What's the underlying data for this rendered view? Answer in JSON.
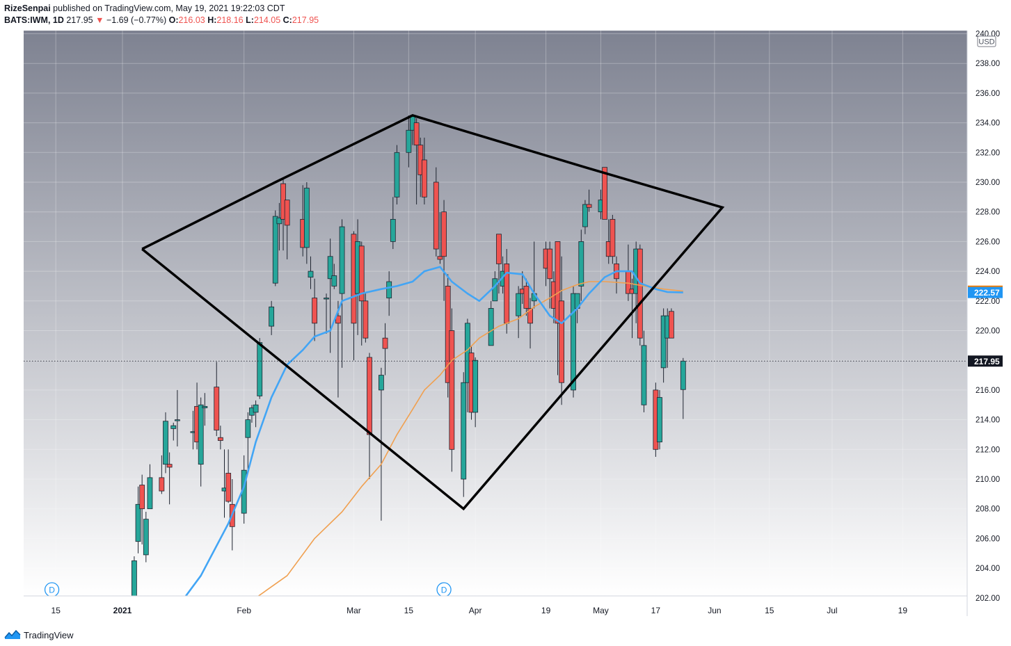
{
  "header": {
    "author": "RizeSenpai",
    "published": " published on TradingView.com, May 19, 2021 19:22:03 CDT",
    "symbol": "BATS:IWM, 1D",
    "price": "217.95",
    "change_arrow": "▼",
    "change": "−1.69 (−0.77%)",
    "o_label": "O:",
    "o_value": "216.03",
    "h_label": "H:",
    "h_value": "218.16",
    "l_label": "L:",
    "l_value": "214.05",
    "c_label": "C:",
    "c_value": "217.95"
  },
  "footer": {
    "brand": "TradingView",
    "icon": "tradingview-logo-icon"
  },
  "colors": {
    "up": "#26a69a",
    "down": "#ef5350",
    "ma_fast": "#42a5f5",
    "ma_slow": "#f0a050",
    "trendline": "#000000",
    "bg_top": "#7e8291",
    "bg_bottom": "#ffffff"
  },
  "chart_data": {
    "type": "candlestick",
    "y_axis": {
      "currency": "USD",
      "ticks": [
        "202.00",
        "204.00",
        "206.00",
        "208.00",
        "210.00",
        "212.00",
        "214.00",
        "216.00",
        "218.00",
        "220.00",
        "222.00",
        "224.00",
        "226.00",
        "228.00",
        "230.00",
        "232.00",
        "234.00",
        "236.00",
        "238.00",
        "240.00"
      ],
      "range": [
        201.3,
        240.4
      ]
    },
    "x_axis": {
      "labels": [
        {
          "text": "15",
          "date": "2020-12-15"
        },
        {
          "text": "2021",
          "date": "2021-01-01",
          "bold": true
        },
        {
          "text": "Feb",
          "date": "2021-02-01"
        },
        {
          "text": "Mar",
          "date": "2021-03-01"
        },
        {
          "text": "15",
          "date": "2021-03-15"
        },
        {
          "text": "Apr",
          "date": "2021-04-01"
        },
        {
          "text": "19",
          "date": "2021-04-19"
        },
        {
          "text": "May",
          "date": "2021-05-03"
        },
        {
          "text": "17",
          "date": "2021-05-17"
        },
        {
          "text": "Jun",
          "date": "2021-06-01"
        },
        {
          "text": "15",
          "date": "2021-06-15"
        },
        {
          "text": "Jul",
          "date": "2021-07-01"
        },
        {
          "text": "19",
          "date": "2021-07-19"
        }
      ]
    },
    "candles": [
      {
        "d": "2021-01-04",
        "o": 201.0,
        "h": 204.8,
        "l": 200.6,
        "c": 204.5
      },
      {
        "d": "2021-01-05",
        "o": 205.8,
        "h": 209.5,
        "l": 205.0,
        "c": 208.3
      },
      {
        "d": "2021-01-06",
        "o": 209.6,
        "h": 210.3,
        "l": 205.6,
        "c": 208.0
      },
      {
        "d": "2021-01-07",
        "o": 204.9,
        "h": 207.8,
        "l": 204.4,
        "c": 207.3
      },
      {
        "d": "2021-01-08",
        "o": 208.0,
        "h": 211.0,
        "l": 208.0,
        "c": 210.1
      },
      {
        "d": "2021-01-11",
        "o": 210.1,
        "h": 211.6,
        "l": 209.0,
        "c": 209.2
      },
      {
        "d": "2021-01-12",
        "o": 211.0,
        "h": 214.5,
        "l": 210.4,
        "c": 213.9
      },
      {
        "d": "2021-01-13",
        "o": 211.0,
        "h": 211.8,
        "l": 208.3,
        "c": 210.8
      },
      {
        "d": "2021-01-14",
        "o": 213.4,
        "h": 213.8,
        "l": 212.6,
        "c": 213.6
      },
      {
        "d": "2021-01-15",
        "o": 214.0,
        "h": 216.0,
        "l": 212.2,
        "c": 214.0
      },
      {
        "d": "2021-01-19",
        "o": 213.2,
        "h": 214.6,
        "l": 212.0,
        "c": 213.2
      },
      {
        "d": "2021-01-20",
        "o": 214.9,
        "h": 216.5,
        "l": 212.0,
        "c": 212.5
      },
      {
        "d": "2021-01-21",
        "o": 211.0,
        "h": 215.5,
        "l": 209.5,
        "c": 215.0
      },
      {
        "d": "2021-01-22",
        "o": 214.8,
        "h": 215.8,
        "l": 213.6,
        "c": 214.9
      },
      {
        "d": "2021-01-25",
        "o": 216.2,
        "h": 217.9,
        "l": 212.9,
        "c": 213.3
      },
      {
        "d": "2021-01-26",
        "o": 212.8,
        "h": 213.6,
        "l": 212.0,
        "c": 212.6
      },
      {
        "d": "2021-01-27",
        "o": 209.2,
        "h": 212.0,
        "l": 207.4,
        "c": 209.4
      },
      {
        "d": "2021-01-28",
        "o": 210.4,
        "h": 212.0,
        "l": 208.4,
        "c": 208.5
      },
      {
        "d": "2021-01-29",
        "o": 208.3,
        "h": 210.0,
        "l": 205.2,
        "c": 206.8
      },
      {
        "d": "2021-02-01",
        "o": 207.7,
        "h": 211.6,
        "l": 207.0,
        "c": 210.6
      },
      {
        "d": "2021-02-02",
        "o": 212.8,
        "h": 214.5,
        "l": 210.6,
        "c": 214.0
      },
      {
        "d": "2021-02-03",
        "o": 214.3,
        "h": 215.0,
        "l": 213.8,
        "c": 214.8
      },
      {
        "d": "2021-02-04",
        "o": 214.5,
        "h": 215.3,
        "l": 213.5,
        "c": 215.0
      },
      {
        "d": "2021-02-05",
        "o": 215.6,
        "h": 219.5,
        "l": 215.4,
        "c": 219.2
      },
      {
        "d": "2021-02-08",
        "o": 220.3,
        "h": 222.0,
        "l": 219.7,
        "c": 221.6
      },
      {
        "d": "2021-02-09",
        "o": 223.2,
        "h": 228.1,
        "l": 223.0,
        "c": 227.7
      },
      {
        "d": "2021-02-10",
        "o": 227.2,
        "h": 228.6,
        "l": 225.4,
        "c": 227.6
      },
      {
        "d": "2021-02-11",
        "o": 229.9,
        "h": 230.3,
        "l": 225.4,
        "c": 227.5
      },
      {
        "d": "2021-02-12",
        "o": 228.8,
        "h": 228.8,
        "l": 224.8,
        "c": 227.1
      },
      {
        "d": "2021-02-16",
        "o": 227.5,
        "h": 229.8,
        "l": 225.0,
        "c": 225.6
      },
      {
        "d": "2021-02-17",
        "o": 225.6,
        "h": 230.0,
        "l": 224.5,
        "c": 229.6
      },
      {
        "d": "2021-02-18",
        "o": 223.6,
        "h": 225.0,
        "l": 222.8,
        "c": 224.0
      },
      {
        "d": "2021-02-19",
        "o": 222.2,
        "h": 223.5,
        "l": 219.3,
        "c": 220.5
      },
      {
        "d": "2021-02-22",
        "o": 222.2,
        "h": 222.5,
        "l": 219.8,
        "c": 222.2
      },
      {
        "d": "2021-02-23",
        "o": 223.5,
        "h": 226.2,
        "l": 218.5,
        "c": 225.0
      },
      {
        "d": "2021-02-24",
        "o": 223.0,
        "h": 224.5,
        "l": 222.8,
        "c": 223.7
      },
      {
        "d": "2021-02-25",
        "o": 221.0,
        "h": 222.0,
        "l": 215.5,
        "c": 220.5
      },
      {
        "d": "2021-02-26",
        "o": 222.5,
        "h": 227.5,
        "l": 217.5,
        "c": 227.0
      },
      {
        "d": "2021-03-01",
        "o": 226.5,
        "h": 226.7,
        "l": 218.0,
        "c": 220.5
      },
      {
        "d": "2021-03-02",
        "o": 222.5,
        "h": 227.5,
        "l": 219.7,
        "c": 226.0
      },
      {
        "d": "2021-03-03",
        "o": 225.7,
        "h": 226.0,
        "l": 219.0,
        "c": 222.0
      },
      {
        "d": "2021-03-04",
        "o": 222.0,
        "h": 222.5,
        "l": 219.2,
        "c": 219.5
      },
      {
        "d": "2021-03-05",
        "o": 218.2,
        "h": 218.5,
        "l": 210.0,
        "c": 213.0
      },
      {
        "d": "2021-03-08",
        "o": 216.0,
        "h": 217.5,
        "l": 207.2,
        "c": 217.0
      },
      {
        "d": "2021-03-09",
        "o": 219.5,
        "h": 220.5,
        "l": 217.0,
        "c": 218.8
      },
      {
        "d": "2021-03-10",
        "o": 222.2,
        "h": 224.0,
        "l": 221.0,
        "c": 223.3
      },
      {
        "d": "2021-03-11",
        "o": 226.0,
        "h": 229.0,
        "l": 225.5,
        "c": 227.5
      },
      {
        "d": "2021-03-12",
        "o": 229.0,
        "h": 232.5,
        "l": 228.5,
        "c": 232.0
      },
      {
        "d": "2021-03-15",
        "o": 232.0,
        "h": 234.5,
        "l": 231.0,
        "c": 233.5
      },
      {
        "d": "2021-03-16",
        "o": 233.5,
        "h": 234.5,
        "l": 232.5,
        "c": 234.5
      },
      {
        "d": "2021-03-17",
        "o": 234.0,
        "h": 234.3,
        "l": 228.5,
        "c": 232.5
      },
      {
        "d": "2021-03-18",
        "o": 232.5,
        "h": 233.0,
        "l": 229.0,
        "c": 230.5
      },
      {
        "d": "2021-03-19",
        "o": 231.5,
        "h": 233.0,
        "l": 228.5,
        "c": 229.0
      },
      {
        "d": "2021-03-22",
        "o": 230.0,
        "h": 231.0,
        "l": 225.0,
        "c": 225.5
      },
      {
        "d": "2021-03-23",
        "o": 225.0,
        "h": 228.0,
        "l": 224.5,
        "c": 224.8
      },
      {
        "d": "2021-03-24",
        "o": 228.0,
        "h": 228.8,
        "l": 222.0,
        "c": 225.0
      },
      {
        "d": "2021-03-25",
        "o": 223.0,
        "h": 223.8,
        "l": 215.5,
        "c": 216.5
      },
      {
        "d": "2021-03-26",
        "o": 220.0,
        "h": 221.5,
        "l": 210.5,
        "c": 212.0
      },
      {
        "d": "2021-03-29",
        "o": 210.0,
        "h": 217.2,
        "l": 208.8,
        "c": 216.5
      },
      {
        "d": "2021-03-30",
        "o": 216.5,
        "h": 220.8,
        "l": 214.5,
        "c": 220.5
      },
      {
        "d": "2021-03-31",
        "o": 218.5,
        "h": 219.0,
        "l": 214.0,
        "c": 214.5
      },
      {
        "d": "2021-04-01",
        "o": 214.5,
        "h": 218.2,
        "l": 213.5,
        "c": 218.0
      },
      {
        "d": "2021-04-05",
        "o": 219.0,
        "h": 222.0,
        "l": 219.0,
        "c": 221.5
      },
      {
        "d": "2021-04-06",
        "o": 222.0,
        "h": 224.0,
        "l": 222.0,
        "c": 223.5
      },
      {
        "d": "2021-04-07",
        "o": 226.5,
        "h": 226.5,
        "l": 222.5,
        "c": 224.5
      },
      {
        "d": "2021-04-08",
        "o": 223.0,
        "h": 225.0,
        "l": 222.5,
        "c": 224.0
      },
      {
        "d": "2021-04-09",
        "o": 224.5,
        "h": 225.5,
        "l": 219.8,
        "c": 220.5
      },
      {
        "d": "2021-04-12",
        "o": 221.0,
        "h": 223.0,
        "l": 219.5,
        "c": 222.5
      },
      {
        "d": "2021-04-13",
        "o": 222.8,
        "h": 224.0,
        "l": 221.8,
        "c": 222.5
      },
      {
        "d": "2021-04-14",
        "o": 223.0,
        "h": 223.5,
        "l": 221.0,
        "c": 221.5
      },
      {
        "d": "2021-04-15",
        "o": 221.5,
        "h": 222.2,
        "l": 218.8,
        "c": 220.5
      },
      {
        "d": "2021-04-16",
        "o": 222.0,
        "h": 226.0,
        "l": 221.5,
        "c": 222.5
      },
      {
        "d": "2021-04-19",
        "o": 225.5,
        "h": 226.0,
        "l": 223.0,
        "c": 224.2
      },
      {
        "d": "2021-04-20",
        "o": 225.5,
        "h": 226.0,
        "l": 221.5,
        "c": 223.5
      },
      {
        "d": "2021-04-21",
        "o": 223.3,
        "h": 224.0,
        "l": 220.5,
        "c": 221.5
      },
      {
        "d": "2021-04-22",
        "o": 226.0,
        "h": 226.0,
        "l": 217.0,
        "c": 220.5
      },
      {
        "d": "2021-04-23",
        "o": 222.0,
        "h": 225.0,
        "l": 215.0,
        "c": 216.5
      },
      {
        "d": "2021-04-26",
        "o": 216.0,
        "h": 223.0,
        "l": 215.5,
        "c": 222.5
      },
      {
        "d": "2021-04-27",
        "o": 221.5,
        "h": 222.5,
        "l": 220.5,
        "c": 222.5
      },
      {
        "d": "2021-04-28",
        "o": 223.0,
        "h": 226.8,
        "l": 222.0,
        "c": 226.0
      },
      {
        "d": "2021-04-29",
        "o": 227.0,
        "h": 228.8,
        "l": 226.5,
        "c": 228.5
      },
      {
        "d": "2021-04-30",
        "o": 228.5,
        "h": 229.5,
        "l": 228.0,
        "c": 228.3
      },
      {
        "d": "2021-05-03",
        "o": 228.0,
        "h": 229.5,
        "l": 227.5,
        "c": 228.8
      },
      {
        "d": "2021-05-04",
        "o": 231.0,
        "h": 231.0,
        "l": 227.5,
        "c": 227.5
      },
      {
        "d": "2021-05-05",
        "o": 226.0,
        "h": 227.5,
        "l": 224.5,
        "c": 225.0
      },
      {
        "d": "2021-05-06",
        "o": 227.5,
        "h": 227.8,
        "l": 224.5,
        "c": 225.0
      },
      {
        "d": "2021-05-07",
        "o": 224.5,
        "h": 225.0,
        "l": 222.5,
        "c": 223.5
      },
      {
        "d": "2021-05-10",
        "o": 224.0,
        "h": 225.8,
        "l": 222.0,
        "c": 222.5
      },
      {
        "d": "2021-05-11",
        "o": 222.8,
        "h": 223.5,
        "l": 219.5,
        "c": 222.5
      },
      {
        "d": "2021-05-12",
        "o": 222.5,
        "h": 226.0,
        "l": 220.5,
        "c": 225.5
      },
      {
        "d": "2021-05-13",
        "o": 225.5,
        "h": 225.8,
        "l": 219.0,
        "c": 219.5
      },
      {
        "d": "2021-05-14",
        "o": 215.0,
        "h": 220.0,
        "l": 214.5,
        "c": 219.0
      },
      {
        "d": "2021-05-17",
        "o": 216.0,
        "h": 216.5,
        "l": 211.5,
        "c": 212.0
      },
      {
        "d": "2021-05-18",
        "o": 212.5,
        "h": 216.0,
        "l": 212.0,
        "c": 215.5
      },
      {
        "d": "2021-05-19",
        "o": 217.5,
        "h": 221.5,
        "l": 216.5,
        "c": 221.0
      },
      {
        "d": "2021-05-20",
        "o": 219.5,
        "h": 221.5,
        "l": 217.5,
        "c": 221.0
      },
      {
        "d": "2021-05-21",
        "o": 221.3,
        "h": 221.5,
        "l": 219.5,
        "c": 219.5
      },
      {
        "d": "2021-05-24",
        "o": 216.03,
        "h": 218.16,
        "l": 214.05,
        "c": 217.95
      }
    ],
    "ma_fast": {
      "label": "222.57",
      "points": [
        [
          "2021-01-14",
          201.0
        ],
        [
          "2021-01-21",
          203.5
        ],
        [
          "2021-01-28",
          207.0
        ],
        [
          "2021-02-01",
          209.5
        ],
        [
          "2021-02-04",
          212.5
        ],
        [
          "2021-02-08",
          215.5
        ],
        [
          "2021-02-12",
          217.7
        ],
        [
          "2021-02-16",
          218.7
        ],
        [
          "2021-02-19",
          219.6
        ],
        [
          "2021-02-23",
          220.0
        ],
        [
          "2021-02-26",
          222.0
        ],
        [
          "2021-03-03",
          222.5
        ],
        [
          "2021-03-08",
          222.8
        ],
        [
          "2021-03-12",
          223.0
        ],
        [
          "2021-03-16",
          223.3
        ],
        [
          "2021-03-19",
          224.0
        ],
        [
          "2021-03-23",
          224.3
        ],
        [
          "2021-03-26",
          223.3
        ],
        [
          "2021-03-30",
          222.5
        ],
        [
          "2021-04-02",
          222.0
        ],
        [
          "2021-04-06",
          223.0
        ],
        [
          "2021-04-09",
          223.9
        ],
        [
          "2021-04-13",
          223.8
        ],
        [
          "2021-04-16",
          222.5
        ],
        [
          "2021-04-20",
          221.0
        ],
        [
          "2021-04-23",
          220.5
        ],
        [
          "2021-04-27",
          221.5
        ],
        [
          "2021-04-30",
          222.5
        ],
        [
          "2021-05-04",
          223.6
        ],
        [
          "2021-05-07",
          224.0
        ],
        [
          "2021-05-11",
          224.0
        ],
        [
          "2021-05-13",
          223.2
        ],
        [
          "2021-05-17",
          222.8
        ],
        [
          "2021-05-20",
          222.6
        ],
        [
          "2021-05-24",
          222.57
        ]
      ]
    },
    "ma_slow": {
      "label": "222.66",
      "points": [
        [
          "2021-02-04",
          202.0
        ],
        [
          "2021-02-12",
          203.5
        ],
        [
          "2021-02-19",
          206.0
        ],
        [
          "2021-02-26",
          207.8
        ],
        [
          "2021-03-03",
          209.5
        ],
        [
          "2021-03-08",
          211.0
        ],
        [
          "2021-03-12",
          213.0
        ],
        [
          "2021-03-16",
          214.7
        ],
        [
          "2021-03-19",
          216.0
        ],
        [
          "2021-03-23",
          217.0
        ],
        [
          "2021-03-26",
          218.0
        ],
        [
          "2021-03-30",
          218.7
        ],
        [
          "2021-04-02",
          219.5
        ],
        [
          "2021-04-07",
          220.3
        ],
        [
          "2021-04-12",
          220.8
        ],
        [
          "2021-04-16",
          221.6
        ],
        [
          "2021-04-20",
          222.2
        ],
        [
          "2021-04-23",
          222.7
        ],
        [
          "2021-04-27",
          223.1
        ],
        [
          "2021-04-30",
          223.3
        ],
        [
          "2021-05-04",
          223.3
        ],
        [
          "2021-05-10",
          223.2
        ],
        [
          "2021-05-14",
          223.0
        ],
        [
          "2021-05-19",
          222.8
        ],
        [
          "2021-05-24",
          222.66
        ]
      ]
    },
    "last_price_label": "217.95",
    "diamond": [
      [
        "2021-01-06",
        225.5
      ],
      [
        "2021-02-09",
        230.0
      ],
      [
        "2021-03-16",
        234.5
      ],
      [
        "2021-04-29",
        231.0
      ],
      [
        "2021-06-03",
        228.3
      ],
      [
        "2021-03-29",
        208.0
      ],
      [
        "2021-01-06",
        225.5
      ]
    ],
    "dividend_markers": [
      {
        "text": "D",
        "date": "2020-12-14"
      },
      {
        "text": "D",
        "date": "2021-03-24"
      }
    ]
  }
}
